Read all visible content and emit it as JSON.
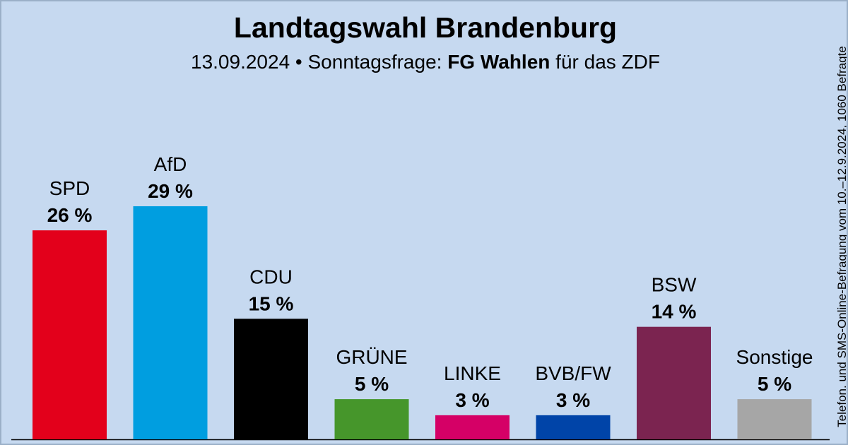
{
  "header": {
    "title": "Landtagswahl Brandenburg",
    "subtitle_prefix": "13.09.2024 • Sonntagsfrage: ",
    "subtitle_institute": "FG Wahlen",
    "subtitle_suffix": " für das ZDF"
  },
  "side_note": "Telefon. und SMS-Online-Befragung vom 10.–12.9.2024, 1060 Befragte",
  "chart_data": {
    "type": "bar",
    "title": "Landtagswahl Brandenburg",
    "categories": [
      "SPD",
      "AfD",
      "CDU",
      "GRÜNE",
      "LINKE",
      "BVB/FW",
      "BSW",
      "Sonstige"
    ],
    "values": [
      26,
      29,
      15,
      5,
      3,
      3,
      14,
      5
    ],
    "value_labels": [
      "26 %",
      "29 %",
      "15 %",
      "5 %",
      "3 %",
      "3 %",
      "14 %",
      "5 %"
    ],
    "colors": [
      "#e3001b",
      "#009ee0",
      "#000000",
      "#46962b",
      "#d50066",
      "#0044a8",
      "#7b2450",
      "#a6a6a6"
    ],
    "unit": "%",
    "ylim": [
      0,
      29
    ],
    "grid": false,
    "legend": "none"
  }
}
